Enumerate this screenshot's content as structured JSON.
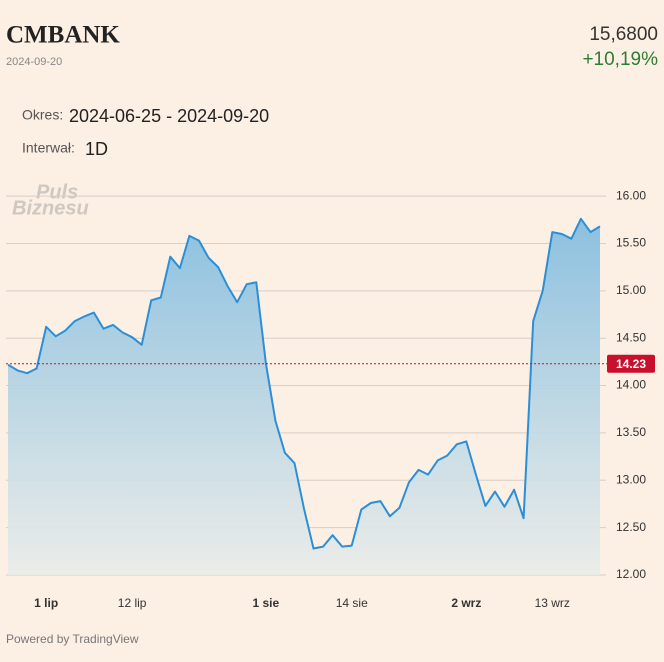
{
  "header": {
    "symbol": "CMBANK",
    "date": "2024-09-20",
    "price": "15,6800",
    "change": "+10,19%",
    "period_label": "Okres:",
    "period": "2024-06-25 - 2024-09-20",
    "interval_label": "Interwał:",
    "interval": "1D",
    "watermark": [
      "Puls",
      "Biznesu"
    ],
    "footer": "Powered by TradingView"
  },
  "chart_data": {
    "type": "area",
    "color": "#2b8fd8",
    "categories": [
      null,
      null,
      null,
      null,
      "1 lip",
      null,
      null,
      null,
      null,
      null,
      null,
      null,
      null,
      "12 lip",
      null,
      null,
      null,
      null,
      null,
      null,
      null,
      null,
      null,
      null,
      null,
      null,
      null,
      "1 sie",
      null,
      null,
      null,
      null,
      null,
      null,
      null,
      null,
      "14 sie",
      null,
      null,
      null,
      null,
      null,
      null,
      null,
      null,
      null,
      null,
      null,
      "2 wrz",
      null,
      null,
      null,
      null,
      null,
      null,
      null,
      null,
      "13 wrz",
      null,
      null,
      null,
      null,
      null
    ],
    "values": [
      14.22,
      14.16,
      14.13,
      14.18,
      14.62,
      14.52,
      14.58,
      14.68,
      14.73,
      14.77,
      14.6,
      14.64,
      14.56,
      14.51,
      14.43,
      14.9,
      14.93,
      15.36,
      15.24,
      15.58,
      15.53,
      15.35,
      15.25,
      15.05,
      14.88,
      15.07,
      15.09,
      14.24,
      13.63,
      13.29,
      13.18,
      12.7,
      12.28,
      12.3,
      12.42,
      12.3,
      12.31,
      12.69,
      12.76,
      12.78,
      12.62,
      12.71,
      12.98,
      13.11,
      13.06,
      13.21,
      13.26,
      13.38,
      13.41,
      13.06,
      12.73,
      12.88,
      12.72,
      12.9,
      12.6,
      14.68,
      15.0,
      15.62,
      15.6,
      15.55,
      15.76,
      15.62,
      15.68
    ],
    "ylim": [
      12,
      16.17
    ],
    "yticks": [
      {
        "value": 12,
        "label": "12.00"
      },
      {
        "value": 12.5,
        "label": "12.50"
      },
      {
        "value": 13,
        "label": "13.00"
      },
      {
        "value": 13.5,
        "label": "13.50"
      },
      {
        "value": 14,
        "label": "14.00"
      },
      {
        "value": 14.5,
        "label": "14.50"
      },
      {
        "value": 15,
        "label": "15.00"
      },
      {
        "value": 15.5,
        "label": "15.50"
      },
      {
        "value": 16,
        "label": "16.00"
      }
    ],
    "grid": true,
    "reference": 14.23,
    "reference_color": "#c8102e"
  }
}
